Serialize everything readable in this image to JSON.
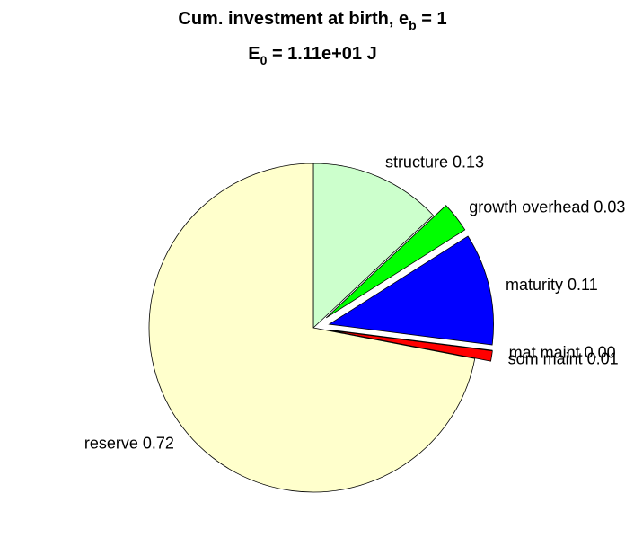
{
  "chart_data": {
    "type": "pie",
    "title": [
      "Cum. investment at birth, e",
      "b",
      " = 1"
    ],
    "subtitle": [
      "E",
      "0",
      " = 1.11e+01 J"
    ],
    "categories": [
      "structure 0.13",
      "growth overhead 0.03",
      "maturity 0.11",
      "mat maint 0.00",
      "som maint 0.01",
      "reserve 0.72"
    ],
    "values": [
      0.13,
      0.03,
      0.11,
      0.0,
      0.01,
      0.72
    ],
    "colors": [
      "#ccffcc",
      "#00ff00",
      "#0000ff",
      "#800000",
      "#ff0000",
      "#ffffcc"
    ],
    "explode": [
      false,
      true,
      true,
      true,
      true,
      false
    ]
  }
}
